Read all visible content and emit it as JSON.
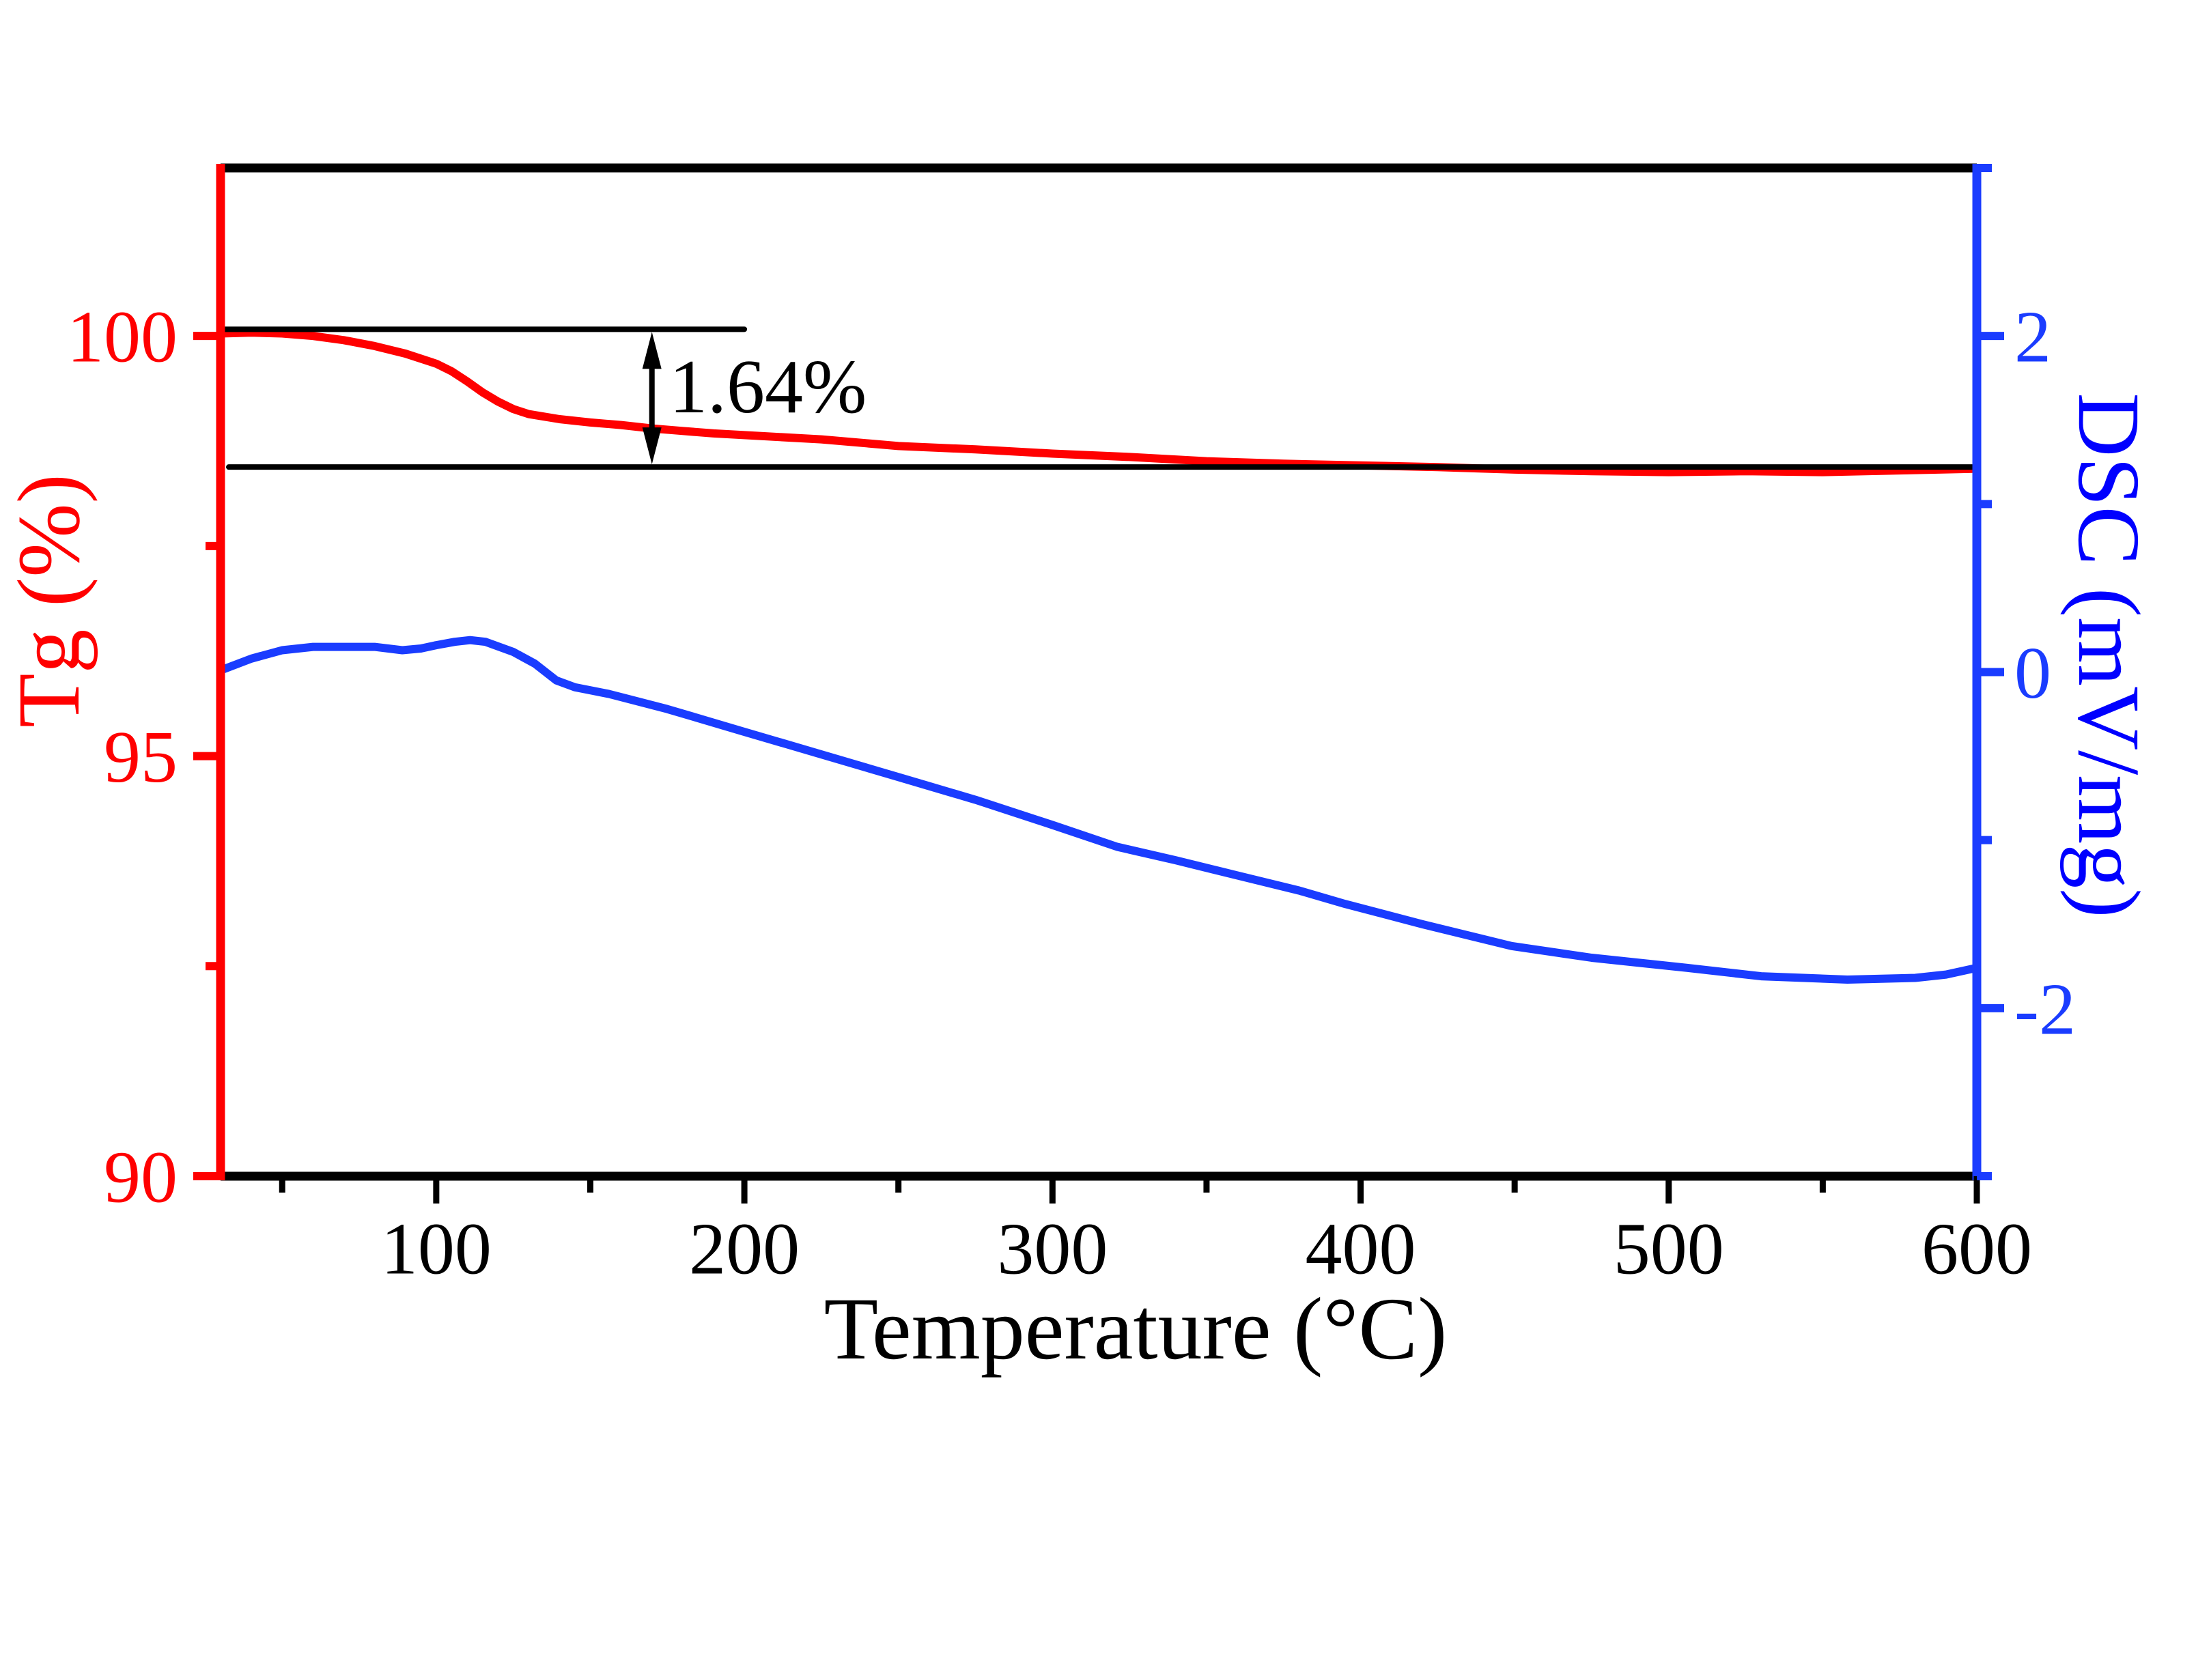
{
  "chart_data": {
    "type": "line",
    "title": "",
    "xlabel": "Temperature (°C)",
    "ylabel_left": "Tg (%)",
    "ylabel_right": "DSC (mV/mg)",
    "xlim": [
      30,
      600
    ],
    "ylim_left": [
      90,
      102
    ],
    "ylim_right": [
      -3,
      3
    ],
    "grid": false,
    "legend": "none",
    "x_ticks": [
      100,
      200,
      300,
      400,
      500,
      600
    ],
    "x_tick_labels": [
      "100",
      "200",
      "300",
      "400",
      "500",
      "600"
    ],
    "x_minor_ticks": [
      50,
      150,
      250,
      350,
      450,
      550
    ],
    "left_ticks": [
      90,
      95,
      100
    ],
    "left_tick_labels": [
      "90",
      "95",
      "100"
    ],
    "left_minor_ticks": [
      92.5,
      97.5
    ],
    "right_ticks": [
      -2,
      0,
      2
    ],
    "right_tick_labels": [
      "-2",
      "0",
      "2"
    ],
    "right_minor_ticks": [
      -3,
      -1,
      1,
      3
    ],
    "colors": {
      "tg": "#ff0000",
      "dsc": "#1a3cff",
      "dsc_label": "#0000ff",
      "frame": "#000000"
    },
    "series": [
      {
        "name": "Tg",
        "axis": "left",
        "x": [
          30,
          40,
          50,
          60,
          70,
          80,
          90,
          100,
          105,
          110,
          115,
          120,
          125,
          130,
          140,
          150,
          160,
          170,
          180,
          190,
          200,
          225,
          250,
          275,
          300,
          325,
          350,
          375,
          400,
          425,
          450,
          475,
          500,
          525,
          550,
          575,
          600
        ],
        "values": [
          100.03,
          100.04,
          100.03,
          100.0,
          99.95,
          99.88,
          99.79,
          99.67,
          99.58,
          99.46,
          99.33,
          99.22,
          99.13,
          99.07,
          99.01,
          98.97,
          98.94,
          98.9,
          98.87,
          98.84,
          98.82,
          98.77,
          98.69,
          98.65,
          98.6,
          98.56,
          98.51,
          98.48,
          98.46,
          98.44,
          98.41,
          98.39,
          98.38,
          98.39,
          98.38,
          98.4,
          98.42
        ]
      },
      {
        "name": "DSC",
        "axis": "right",
        "x": [
          30,
          40,
          50,
          60,
          72,
          80,
          89,
          95,
          100,
          106,
          111,
          116,
          125,
          132,
          139,
          145,
          156,
          175,
          199,
          225,
          251,
          275,
          300,
          321,
          340,
          360,
          380,
          395,
          420,
          449,
          475,
          506,
          530,
          558,
          580,
          590,
          600
        ],
        "values": [
          0.01,
          0.08,
          0.13,
          0.15,
          0.15,
          0.15,
          0.13,
          0.14,
          0.16,
          0.18,
          0.19,
          0.18,
          0.12,
          0.05,
          -0.05,
          -0.09,
          -0.13,
          -0.22,
          -0.35,
          -0.49,
          -0.63,
          -0.76,
          -0.91,
          -1.04,
          -1.12,
          -1.21,
          -1.3,
          -1.38,
          -1.5,
          -1.63,
          -1.7,
          -1.76,
          -1.81,
          -1.83,
          -1.82,
          -1.8,
          -1.76
        ]
      }
    ],
    "annotations": {
      "mass_loss_label": "1.64%",
      "upper_level": 100.08,
      "lower_level": 98.44,
      "upper_line_x": [
        30,
        200
      ],
      "lower_line_x": [
        30,
        600
      ],
      "arrow_x": 170
    }
  }
}
